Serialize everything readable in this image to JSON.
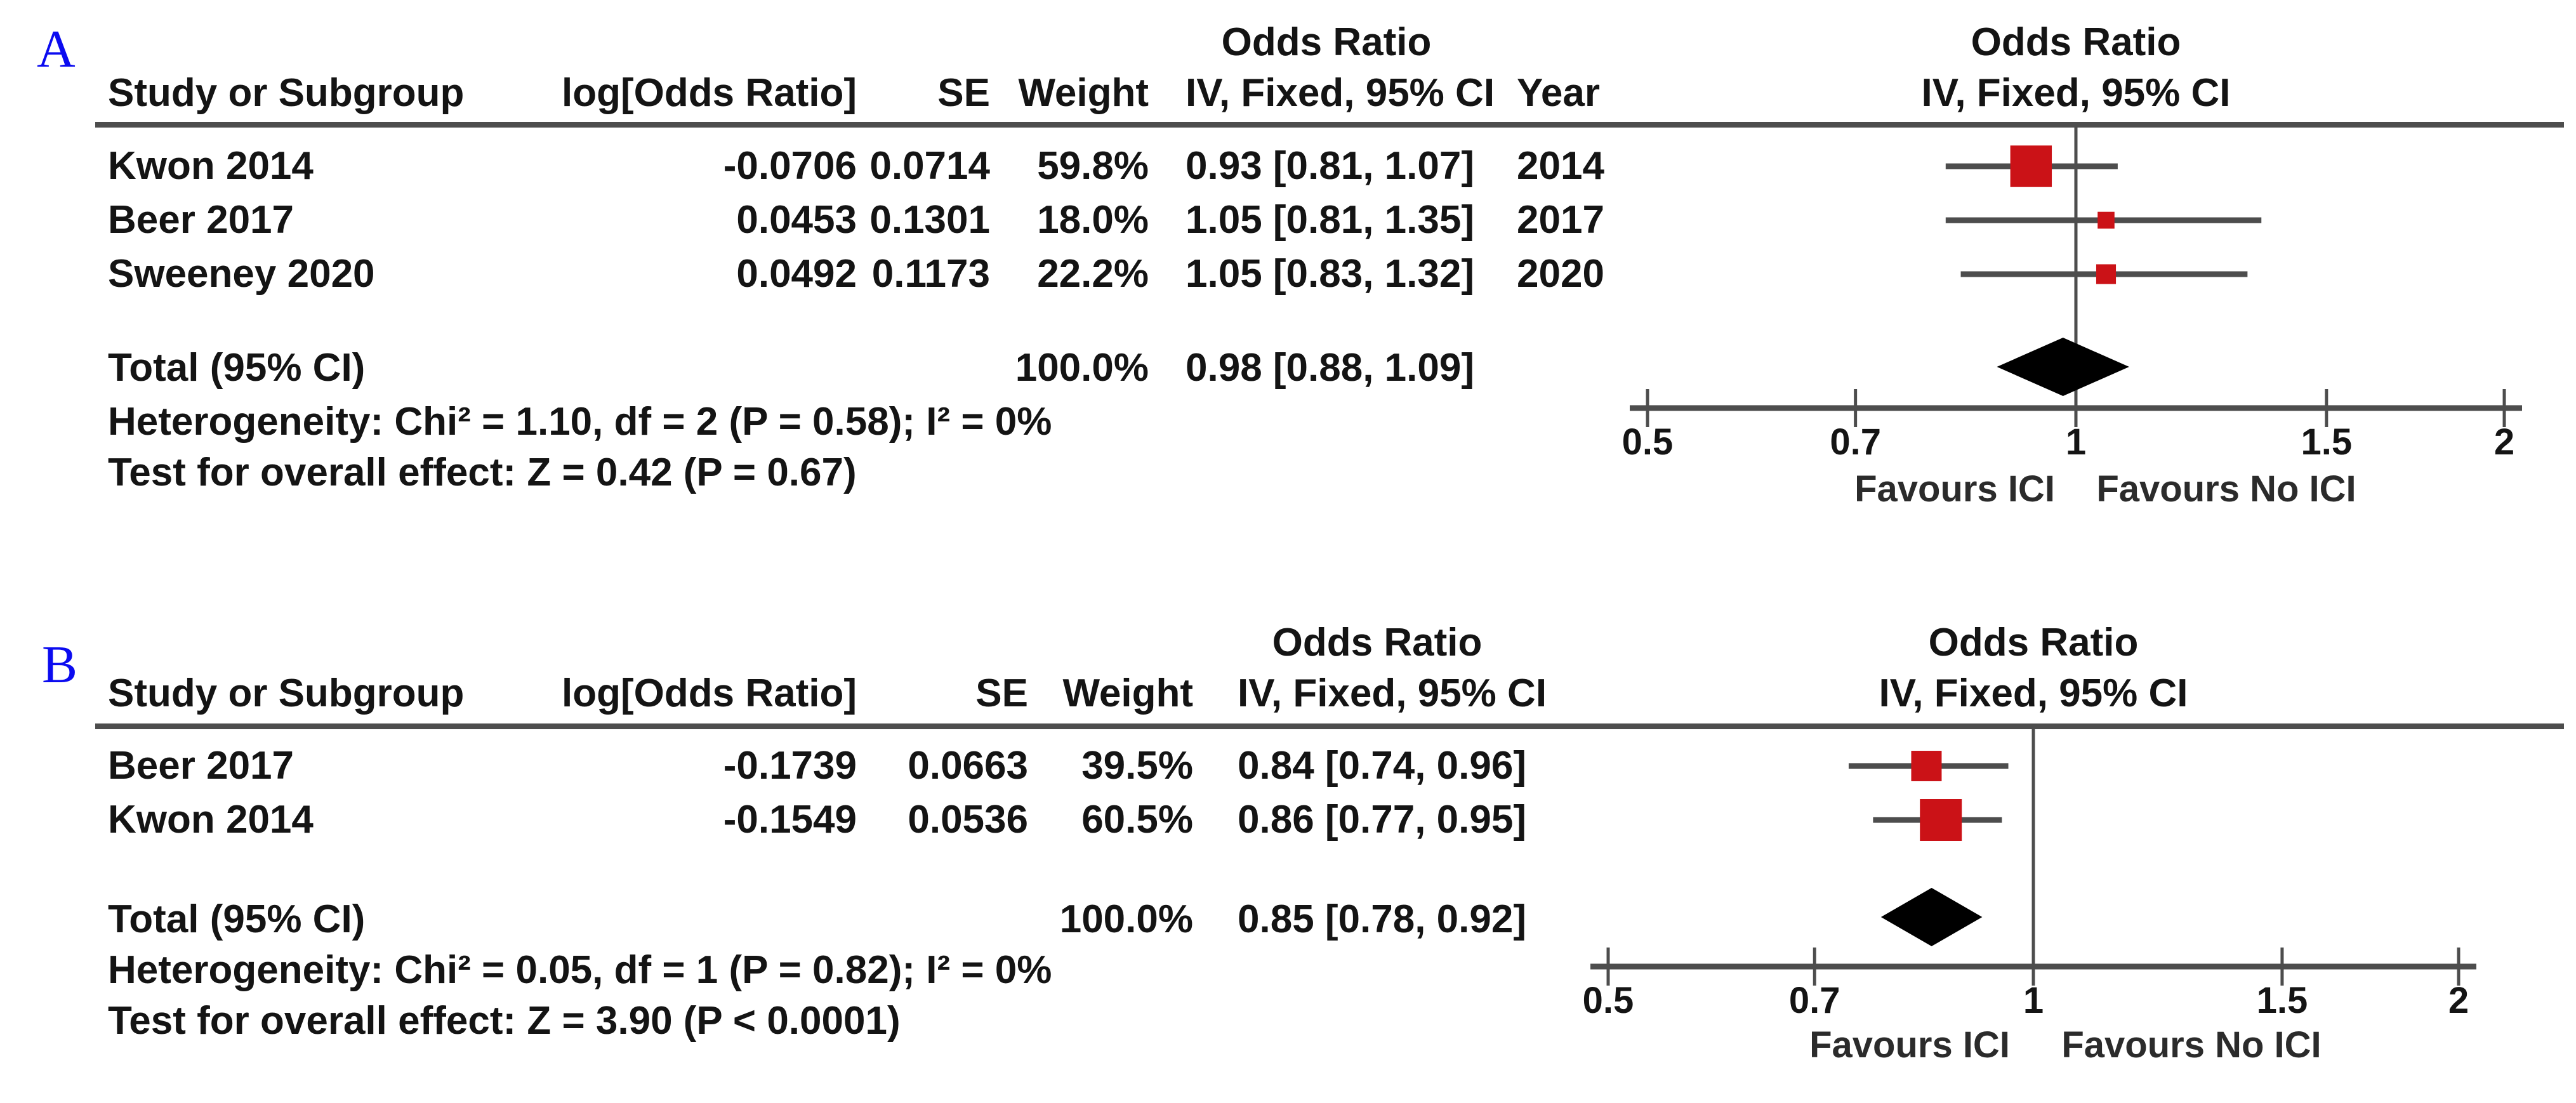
{
  "colors": {
    "marker": "#cb1217",
    "diamond": "#000000",
    "line": "#4d4d4d",
    "panel_label": "#0b0bf0"
  },
  "panels": [
    {
      "label": "A",
      "table": {
        "header_group": "Odds Ratio",
        "columns": [
          "Study or Subgroup",
          "log[Odds Ratio]",
          "SE",
          "Weight",
          "IV, Fixed, 95% CI",
          "Year"
        ],
        "rows": [
          {
            "study": "Kwon 2014",
            "log_or": "-0.0706",
            "se": "0.0714",
            "weight": "59.8%",
            "or_ci": "0.93 [0.81, 1.07]",
            "year": "2014"
          },
          {
            "study": "Beer 2017",
            "log_or": "0.0453",
            "se": "0.1301",
            "weight": "18.0%",
            "or_ci": "1.05 [0.81, 1.35]",
            "year": "2017"
          },
          {
            "study": "Sweeney 2020",
            "log_or": "0.0492",
            "se": "0.1173",
            "weight": "22.2%",
            "or_ci": "1.05 [0.83, 1.32]",
            "year": "2020"
          }
        ],
        "total_label": "Total (95% CI)",
        "total_weight": "100.0%",
        "total_or_ci": "0.98 [0.88, 1.09]",
        "heterogeneity": "Heterogeneity: Chi² = 1.10, df = 2 (P = 0.58); I² = 0%",
        "overall_effect": "Test for overall effect: Z = 0.42 (P = 0.67)"
      },
      "plot": {
        "header_line1": "Odds Ratio",
        "header_line2": "IV, Fixed, 95% CI",
        "axis_ticks": [
          "0.5",
          "0.7",
          "1",
          "1.5",
          "2"
        ],
        "favours_left": "Favours ICI",
        "favours_right": "Favours No ICI"
      }
    },
    {
      "label": "B",
      "table": {
        "header_group": "Odds Ratio",
        "columns": [
          "Study or Subgroup",
          "log[Odds Ratio]",
          "SE",
          "Weight",
          "IV, Fixed, 95% CI"
        ],
        "rows": [
          {
            "study": "Beer 2017",
            "log_or": "-0.1739",
            "se": "0.0663",
            "weight": "39.5%",
            "or_ci": "0.84 [0.74, 0.96]"
          },
          {
            "study": "Kwon 2014",
            "log_or": "-0.1549",
            "se": "0.0536",
            "weight": "60.5%",
            "or_ci": "0.86 [0.77, 0.95]"
          }
        ],
        "total_label": "Total (95% CI)",
        "total_weight": "100.0%",
        "total_or_ci": "0.85 [0.78, 0.92]",
        "heterogeneity": "Heterogeneity: Chi² = 0.05, df = 1 (P = 0.82); I² = 0%",
        "overall_effect": "Test for overall effect: Z = 3.90 (P < 0.0001)"
      },
      "plot": {
        "header_line1": "Odds Ratio",
        "header_line2": "IV, Fixed, 95% CI",
        "axis_ticks": [
          "0.5",
          "0.7",
          "1",
          "1.5",
          "2"
        ],
        "favours_left": "Favours ICI",
        "favours_right": "Favours No ICI"
      }
    }
  ],
  "chart_data": [
    {
      "type": "scatter",
      "subtype": "forest-plot",
      "title": "Odds Ratio IV, Fixed, 95% CI",
      "x_scale": "log",
      "xlim": [
        0.5,
        2
      ],
      "x_ticks": [
        0.5,
        0.7,
        1,
        1.5,
        2
      ],
      "null_line": 1,
      "studies": [
        {
          "name": "Kwon 2014",
          "log_or": -0.0706,
          "se": 0.0714,
          "weight_pct": 59.8,
          "or": 0.93,
          "ci": [
            0.81,
            1.07
          ],
          "year": 2014
        },
        {
          "name": "Beer 2017",
          "log_or": 0.0453,
          "se": 0.1301,
          "weight_pct": 18.0,
          "or": 1.05,
          "ci": [
            0.81,
            1.35
          ],
          "year": 2017
        },
        {
          "name": "Sweeney 2020",
          "log_or": 0.0492,
          "se": 0.1173,
          "weight_pct": 22.2,
          "or": 1.05,
          "ci": [
            0.83,
            1.32
          ],
          "year": 2020
        }
      ],
      "pooled": {
        "name": "Total (95% CI)",
        "weight_pct": 100.0,
        "or": 0.98,
        "ci": [
          0.88,
          1.09
        ]
      },
      "heterogeneity": {
        "chi2": 1.1,
        "df": 2,
        "p": 0.58,
        "i2_pct": 0
      },
      "overall_effect": {
        "z": 0.42,
        "p": "0.67"
      },
      "favours": [
        "Favours ICI",
        "Favours No ICI"
      ],
      "legend_position": "none",
      "grid": false
    },
    {
      "type": "scatter",
      "subtype": "forest-plot",
      "title": "Odds Ratio IV, Fixed, 95% CI",
      "x_scale": "log",
      "xlim": [
        0.5,
        2
      ],
      "x_ticks": [
        0.5,
        0.7,
        1,
        1.5,
        2
      ],
      "null_line": 1,
      "studies": [
        {
          "name": "Beer 2017",
          "log_or": -0.1739,
          "se": 0.0663,
          "weight_pct": 39.5,
          "or": 0.84,
          "ci": [
            0.74,
            0.96
          ]
        },
        {
          "name": "Kwon 2014",
          "log_or": -0.1549,
          "se": 0.0536,
          "weight_pct": 60.5,
          "or": 0.86,
          "ci": [
            0.77,
            0.95
          ]
        }
      ],
      "pooled": {
        "name": "Total (95% CI)",
        "weight_pct": 100.0,
        "or": 0.85,
        "ci": [
          0.78,
          0.92
        ]
      },
      "heterogeneity": {
        "chi2": 0.05,
        "df": 1,
        "p": 0.82,
        "i2_pct": 0
      },
      "overall_effect": {
        "z": 3.9,
        "p": "<0.0001"
      },
      "favours": [
        "Favours ICI",
        "Favours No ICI"
      ],
      "legend_position": "none",
      "grid": false
    }
  ]
}
